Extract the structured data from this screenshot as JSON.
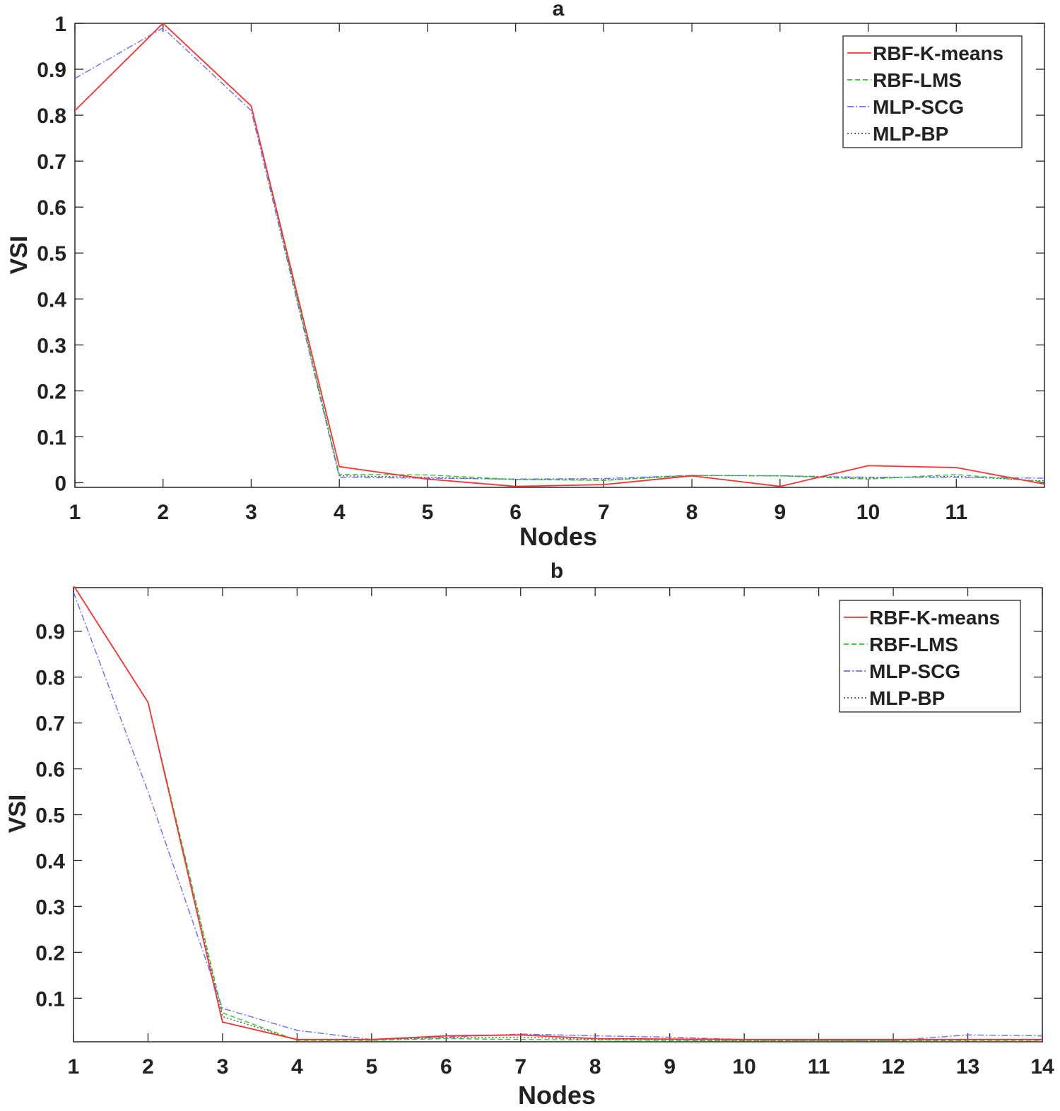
{
  "chart_data": [
    {
      "type": "line",
      "title": "a",
      "xlabel": "Nodes",
      "ylabel": "VSI",
      "xlim": [
        1,
        12
      ],
      "ylim": [
        -0.01,
        1
      ],
      "x": [
        1,
        2,
        3,
        4,
        5,
        6,
        7,
        8,
        9,
        10,
        11,
        12
      ],
      "xticks": [
        1,
        2,
        3,
        4,
        5,
        6,
        7,
        8,
        9,
        10,
        11
      ],
      "xtick_labels": [
        "1",
        "2",
        "3",
        "4",
        "5",
        "6",
        "7",
        "8",
        "9",
        "10",
        "11"
      ],
      "yticks": [
        0,
        0.1,
        0.2,
        0.3,
        0.4,
        0.5,
        0.6,
        0.7,
        0.8,
        0.9,
        1
      ],
      "ytick_labels": [
        "0",
        "0.1",
        "0.2",
        "0.3",
        "0.4",
        "0.5",
        "0.6",
        "0.7",
        "0.8",
        "0.9",
        "1"
      ],
      "legend": "top-right",
      "grid": false,
      "series": [
        {
          "name": "RBF-K-means",
          "color": "#ff3030",
          "dash": "solid",
          "values": [
            0.81,
            1.0,
            0.82,
            0.035,
            0.008,
            -0.008,
            -0.004,
            0.015,
            -0.008,
            0.037,
            0.033,
            -0.003
          ]
        },
        {
          "name": "RBF-LMS",
          "color": "#22cc22",
          "dash": "dashed",
          "values": [
            0.81,
            1.0,
            0.82,
            0.018,
            0.017,
            0.007,
            0.005,
            0.016,
            0.015,
            0.008,
            0.018,
            0.002
          ]
        },
        {
          "name": "MLP-SCG",
          "color": "#6a6aff",
          "dash": "dashdot",
          "values": [
            0.88,
            0.99,
            0.81,
            0.012,
            0.01,
            0.008,
            0.009,
            0.016,
            0.015,
            0.012,
            0.012,
            0.01
          ]
        },
        {
          "name": "MLP-BP",
          "color": "#555555",
          "dash": "dotted",
          "values": [
            0.81,
            1.0,
            0.82,
            0.015,
            0.012,
            0.007,
            0.006,
            0.016,
            0.015,
            0.01,
            0.014,
            0.004
          ]
        }
      ]
    },
    {
      "type": "line",
      "title": "b",
      "xlabel": "Nodes",
      "ylabel": "VSI",
      "xlim": [
        1,
        14
      ],
      "ylim": [
        0.005,
        0.995
      ],
      "x": [
        1,
        2,
        3,
        4,
        5,
        6,
        7,
        8,
        9,
        10,
        11,
        12,
        13,
        14
      ],
      "xticks": [
        1,
        2,
        3,
        4,
        5,
        6,
        7,
        8,
        9,
        10,
        11,
        12,
        13,
        14
      ],
      "xtick_labels": [
        "1",
        "2",
        "3",
        "4",
        "5",
        "6",
        "7",
        "8",
        "9",
        "10",
        "11",
        "12",
        "13",
        "14"
      ],
      "yticks": [
        0.1,
        0.2,
        0.3,
        0.4,
        0.5,
        0.6,
        0.7,
        0.8,
        0.9
      ],
      "ytick_labels": [
        "0.1",
        "0.2",
        "0.3",
        "0.4",
        "0.5",
        "0.6",
        "0.7",
        "0.8",
        "0.9"
      ],
      "legend": "top-right",
      "grid": false,
      "series": [
        {
          "name": "RBF-K-means",
          "color": "#ff3030",
          "dash": "solid",
          "values": [
            1.0,
            0.745,
            0.048,
            0.01,
            0.01,
            0.018,
            0.02,
            0.012,
            0.011,
            0.01,
            0.01,
            0.01,
            0.01,
            0.01
          ]
        },
        {
          "name": "RBF-LMS",
          "color": "#22cc22",
          "dash": "dashed",
          "values": [
            1.0,
            0.745,
            0.068,
            0.008,
            0.008,
            0.012,
            0.01,
            0.009,
            0.008,
            0.007,
            0.007,
            0.007,
            0.008,
            0.008
          ]
        },
        {
          "name": "MLP-SCG",
          "color": "#6a6aff",
          "dash": "dashdot",
          "values": [
            0.985,
            0.55,
            0.078,
            0.03,
            0.01,
            0.015,
            0.022,
            0.018,
            0.015,
            0.01,
            0.008,
            0.008,
            0.02,
            0.018
          ]
        },
        {
          "name": "MLP-BP",
          "color": "#555555",
          "dash": "dotted",
          "values": [
            1.0,
            0.745,
            0.06,
            0.009,
            0.009,
            0.014,
            0.015,
            0.01,
            0.009,
            0.008,
            0.008,
            0.008,
            0.009,
            0.009
          ]
        }
      ]
    }
  ]
}
